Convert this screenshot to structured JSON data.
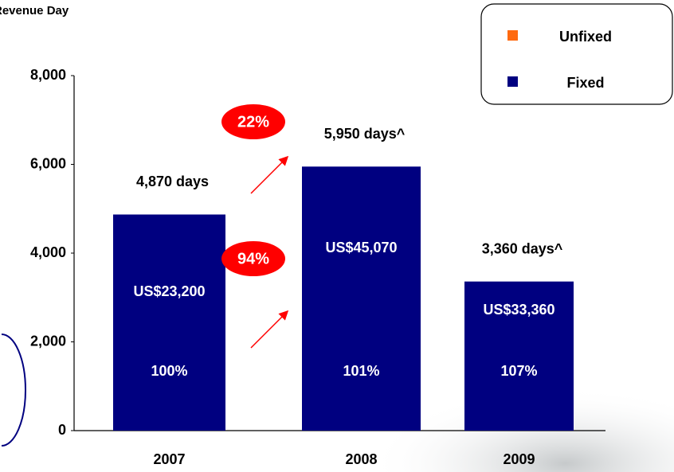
{
  "chart_data": {
    "type": "bar",
    "title": "Revenue Day",
    "categories": [
      "2007",
      "2008",
      "2009"
    ],
    "series": [
      {
        "name": "Unfixed",
        "color": "#ff6a10",
        "values": [
          null,
          null,
          null
        ]
      },
      {
        "name": "Fixed",
        "color": "#000080",
        "values": [
          4870,
          5950,
          3360
        ],
        "value_labels": [
          "4,870 days",
          "5,950 days^",
          "3,360 days^"
        ],
        "revenue_labels": [
          "US$23,200",
          "US$45,070",
          "US$33,360"
        ],
        "share_labels": [
          "100%",
          "101%",
          "107%"
        ]
      }
    ],
    "growth_badges": [
      "22%",
      "94%"
    ],
    "ylim": [
      0,
      8000
    ],
    "yticks": [
      0,
      {
        "value": 2000,
        "label": "2,000"
      },
      {
        "value": 4000,
        "label": "4,000"
      },
      {
        "value": 6000,
        "label": "6,000"
      },
      {
        "value": 8000,
        "label": "8,000"
      }
    ],
    "grid": false,
    "legend": "top-right"
  }
}
